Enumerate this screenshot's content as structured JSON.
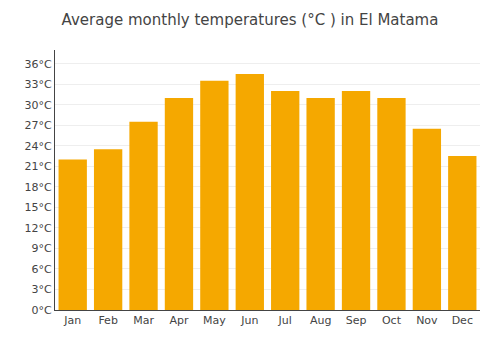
{
  "chart_data": {
    "type": "bar",
    "title": "Average monthly temperatures (°C ) in El Matama",
    "categories": [
      "Jan",
      "Feb",
      "Mar",
      "Apr",
      "May",
      "Jun",
      "Jul",
      "Aug",
      "Sep",
      "Oct",
      "Nov",
      "Dec"
    ],
    "values": [
      22,
      23.5,
      27.5,
      31,
      33.5,
      34.5,
      32,
      31,
      32,
      31,
      26.5,
      22.5
    ],
    "color": "#F5A800",
    "ylim": [
      0,
      38
    ],
    "yticks": [
      {
        "value": 0,
        "label": "0°C"
      },
      {
        "value": 3,
        "label": "3°C"
      },
      {
        "value": 6,
        "label": "6°C"
      },
      {
        "value": 9,
        "label": "9°C"
      },
      {
        "value": 12,
        "label": "12°C"
      },
      {
        "value": 15,
        "label": "15°C"
      },
      {
        "value": 18,
        "label": "18°C"
      },
      {
        "value": 21,
        "label": "21°C"
      },
      {
        "value": 24,
        "label": "24°C"
      },
      {
        "value": 27,
        "label": "27°C"
      },
      {
        "value": 30,
        "label": "30°C"
      },
      {
        "value": 33,
        "label": "33°C"
      },
      {
        "value": 36,
        "label": "36°C"
      }
    ],
    "grid": true
  }
}
